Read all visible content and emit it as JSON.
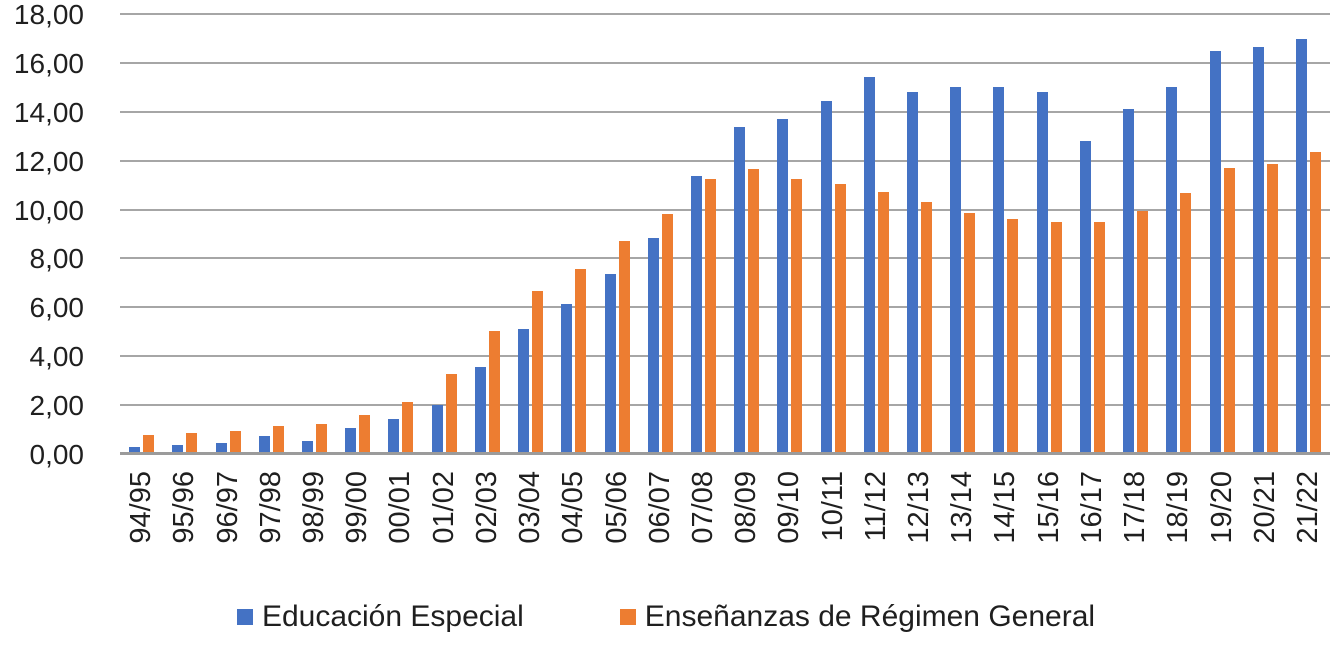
{
  "chart_data": {
    "type": "bar",
    "title": "",
    "categories": [
      "94/95",
      "95/96",
      "96/97",
      "97/98",
      "98/99",
      "99/00",
      "00/01",
      "01/02",
      "02/03",
      "03/04",
      "04/05",
      "05/06",
      "06/07",
      "07/08",
      "08/09",
      "09/10",
      "10/11",
      "11/12",
      "12/13",
      "13/14",
      "14/15",
      "15/16",
      "16/17",
      "17/18",
      "18/19",
      "19/20",
      "20/21",
      "21/22"
    ],
    "series": [
      {
        "name": "Educación Especial",
        "color": "#4472C4",
        "values": [
          0.34,
          0.41,
          0.49,
          0.77,
          0.58,
          1.11,
          1.47,
          2.05,
          3.61,
          5.16,
          6.19,
          7.39,
          8.86,
          11.4,
          13.4,
          13.73,
          14.49,
          15.47,
          14.85,
          15.05,
          15.05,
          14.85,
          12.84,
          14.15,
          15.06,
          16.54,
          16.69,
          17.0
        ]
      },
      {
        "name": "Enseñanzas de Régimen General",
        "color": "#ED7D31",
        "values": [
          0.82,
          0.92,
          1.0,
          1.18,
          1.26,
          1.62,
          2.16,
          3.33,
          5.07,
          6.69,
          7.62,
          8.77,
          9.88,
          11.3,
          11.7,
          11.28,
          11.08,
          10.77,
          10.34,
          9.9,
          9.64,
          9.52,
          9.55,
          10.0,
          10.7,
          11.73,
          11.9,
          12.4
        ]
      }
    ],
    "xlabel": "",
    "ylabel": "",
    "ylim": [
      0,
      18
    ],
    "ytick_step": 2,
    "ytick_labels": [
      "0,00",
      "2,00",
      "4,00",
      "6,00",
      "8,00",
      "10,00",
      "12,00",
      "14,00",
      "16,00",
      "18,00"
    ],
    "grid": true,
    "legend_position": "bottom"
  },
  "colors": {
    "gridline": "#a6a6a6",
    "axis_line": "#9b9b9b",
    "text": "#1f1f1f"
  }
}
